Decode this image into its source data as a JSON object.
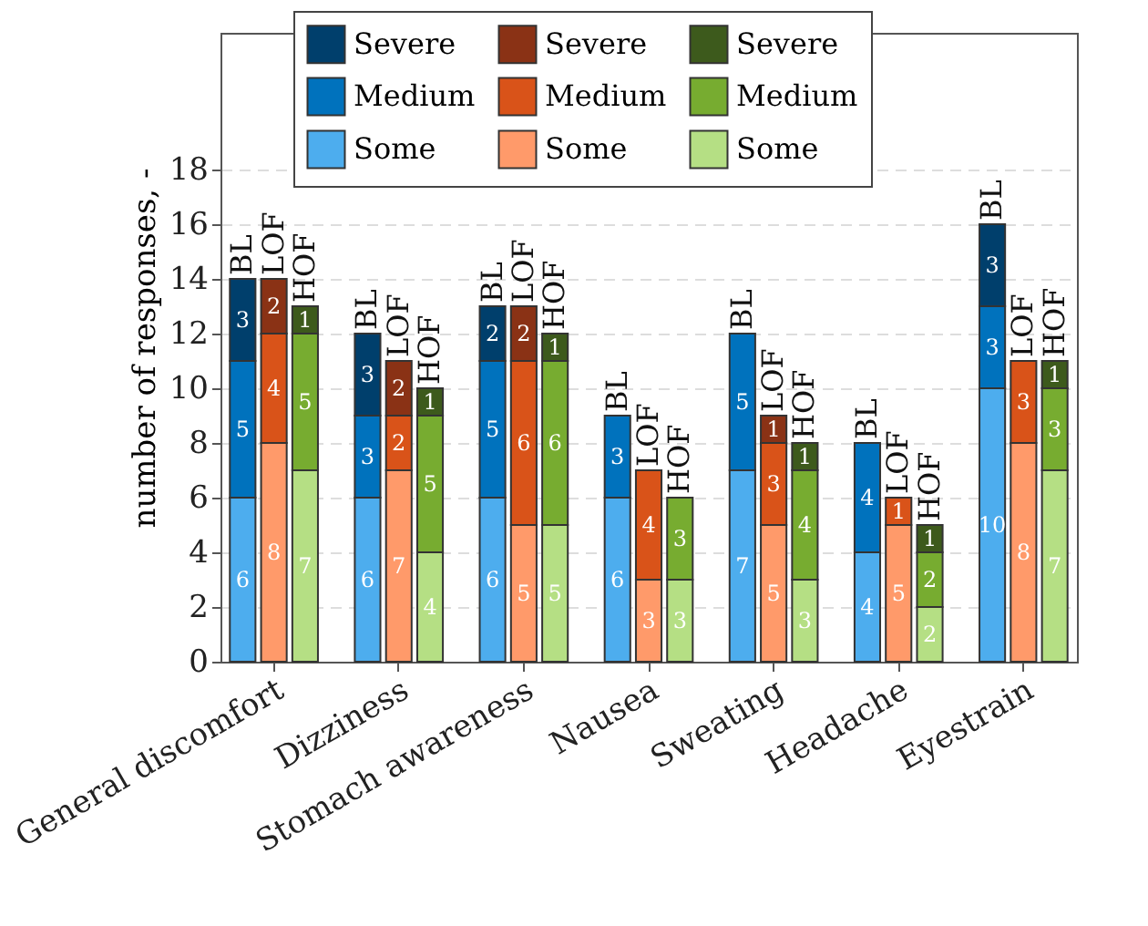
{
  "chart_data": {
    "type": "bar",
    "stacked": true,
    "ylabel": "number of responses, -",
    "categories": [
      "BL",
      "LOF",
      "HOF",
      "BL",
      "LOF",
      "HOF",
      "BL",
      "LOF",
      "HOF",
      "BL",
      "LOF",
      "HOF",
      "BL",
      "LOF",
      "HOF",
      "BL",
      "LOF",
      "HOF",
      "BL",
      "LOF",
      "HOF"
    ],
    "annotations": [
      "General discomfort",
      "Dizziness",
      "Stomach awareness",
      "Nausea",
      "Sweating",
      "Headache",
      "Eyestrain"
    ],
    "series": [
      {
        "name": "Some",
        "colors": [
          "#4dadee",
          "#ff9a6a",
          "#b5df84",
          "#4dadee",
          "#ff9a6a",
          "#b5df84",
          "#4dadee",
          "#ff9a6a",
          "#b5df84",
          "#4dadee",
          "#ff9a6a",
          "#b5df84",
          "#4dadee",
          "#ff9a6a",
          "#b5df84",
          "#4dadee",
          "#ff9a6a",
          "#b5df84",
          "#4dadee",
          "#ff9a6a",
          "#b5df84"
        ],
        "values": [
          6,
          8,
          7,
          6,
          7,
          4,
          6,
          5,
          5,
          6,
          3,
          3,
          7,
          5,
          3,
          4,
          5,
          2,
          10,
          8,
          7
        ],
        "value_labels": [
          "6",
          "8",
          "7",
          "6",
          "7",
          "4",
          "6",
          "5",
          "5",
          "6",
          "3",
          "3",
          "7",
          "5",
          "3",
          "4",
          "5",
          "2",
          "10",
          "8",
          "7"
        ]
      },
      {
        "name": "Medium",
        "colors": [
          "#0072bd",
          "#d95319",
          "#77ac30",
          "#0072bd",
          "#d95319",
          "#77ac30",
          "#0072bd",
          "#d95319",
          "#77ac30",
          "#0072bd",
          "#d95319",
          "#77ac30",
          "#0072bd",
          "#d95319",
          "#77ac30",
          "#0072bd",
          "#d95319",
          "#77ac30",
          "#0072bd",
          "#d95319",
          "#77ac30"
        ],
        "values": [
          5,
          4,
          5,
          3,
          2,
          5,
          5,
          6,
          6,
          3,
          4,
          3,
          5,
          3,
          4,
          4,
          1,
          2,
          3,
          3,
          3
        ],
        "value_labels": [
          "5",
          "4",
          "5",
          "3",
          "2",
          "5",
          "5",
          "6",
          "6",
          "3",
          "4",
          "3",
          "5",
          "3",
          "4",
          "4",
          "1",
          "2",
          "3",
          "3",
          "3"
        ]
      },
      {
        "name": "Severe",
        "colors": [
          "#003f6c",
          "#8a3215",
          "#3d5a1c",
          "#003f6c",
          "#8a3215",
          "#3d5a1c",
          "#003f6c",
          "#8a3215",
          "#3d5a1c",
          "#003f6c",
          "#8a3215",
          "#3d5a1c",
          "#003f6c",
          "#8a3215",
          "#3d5a1c",
          "#003f6c",
          "#8a3215",
          "#3d5a1c",
          "#003f6c",
          "#8a3215",
          "#3d5a1c"
        ],
        "values": [
          3,
          2,
          1,
          3,
          2,
          1,
          2,
          2,
          1,
          0,
          0,
          0,
          0,
          1,
          1,
          0,
          0,
          1,
          3,
          0,
          1
        ],
        "value_labels": [
          "3",
          "2",
          "1",
          "3",
          "2",
          "1",
          "2",
          "2",
          "1",
          null,
          null,
          null,
          null,
          "1",
          "1",
          null,
          null,
          "1",
          "3",
          null,
          "1"
        ]
      }
    ],
    "ylim": [
      0,
      23
    ],
    "yticks": [
      0,
      2,
      4,
      6,
      8,
      10,
      12,
      14,
      16,
      18
    ],
    "grid": "y",
    "legend": "top"
  }
}
